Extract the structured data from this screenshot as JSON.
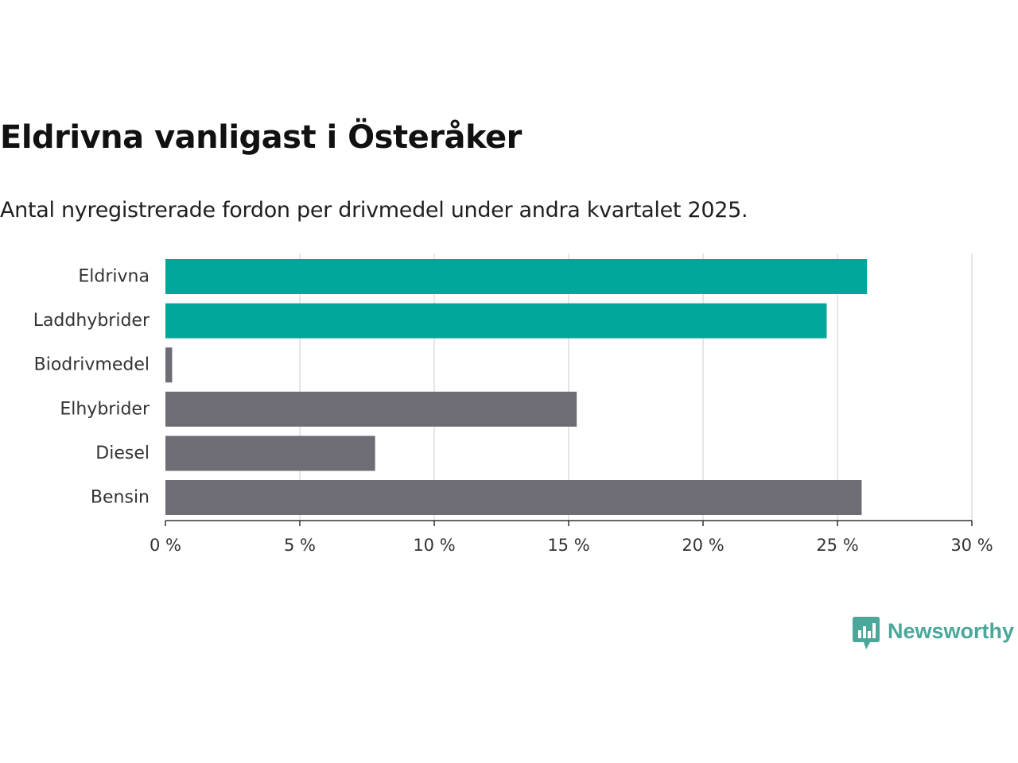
{
  "chart_data": {
    "type": "bar",
    "orientation": "horizontal",
    "title": "Eldrivna vanligast i Österåker",
    "subtitle": "Antal nyregistrerade fordon per drivmedel under andra kvartalet 2025.",
    "categories": [
      "Eldrivna",
      "Laddhybrider",
      "Biodrivmedel",
      "Elhybrider",
      "Diesel",
      "Bensin"
    ],
    "values": [
      26.1,
      24.6,
      0.25,
      15.3,
      7.8,
      25.9
    ],
    "value_unit": "%",
    "bar_colors": [
      "#00a699",
      "#00a699",
      "#6e6c74",
      "#6e6c74",
      "#6e6c74",
      "#6e6c74"
    ],
    "xlim": [
      0,
      30
    ],
    "xticks": [
      0,
      5,
      10,
      15,
      20,
      25,
      30
    ],
    "xtick_labels": [
      "0 %",
      "5 %",
      "10 %",
      "15 %",
      "20 %",
      "25 %",
      "30 %"
    ],
    "xlabel": "",
    "ylabel": "",
    "grid": true,
    "legend": "none"
  },
  "colors": {
    "highlight": "#00a699",
    "muted": "#6e6c74",
    "brand": "#4aa79a",
    "grid": "#dddddd",
    "axis": "#333333"
  },
  "brand": {
    "name": "Newsworthy",
    "icon": "bar-chart-speech-bubble-icon"
  }
}
